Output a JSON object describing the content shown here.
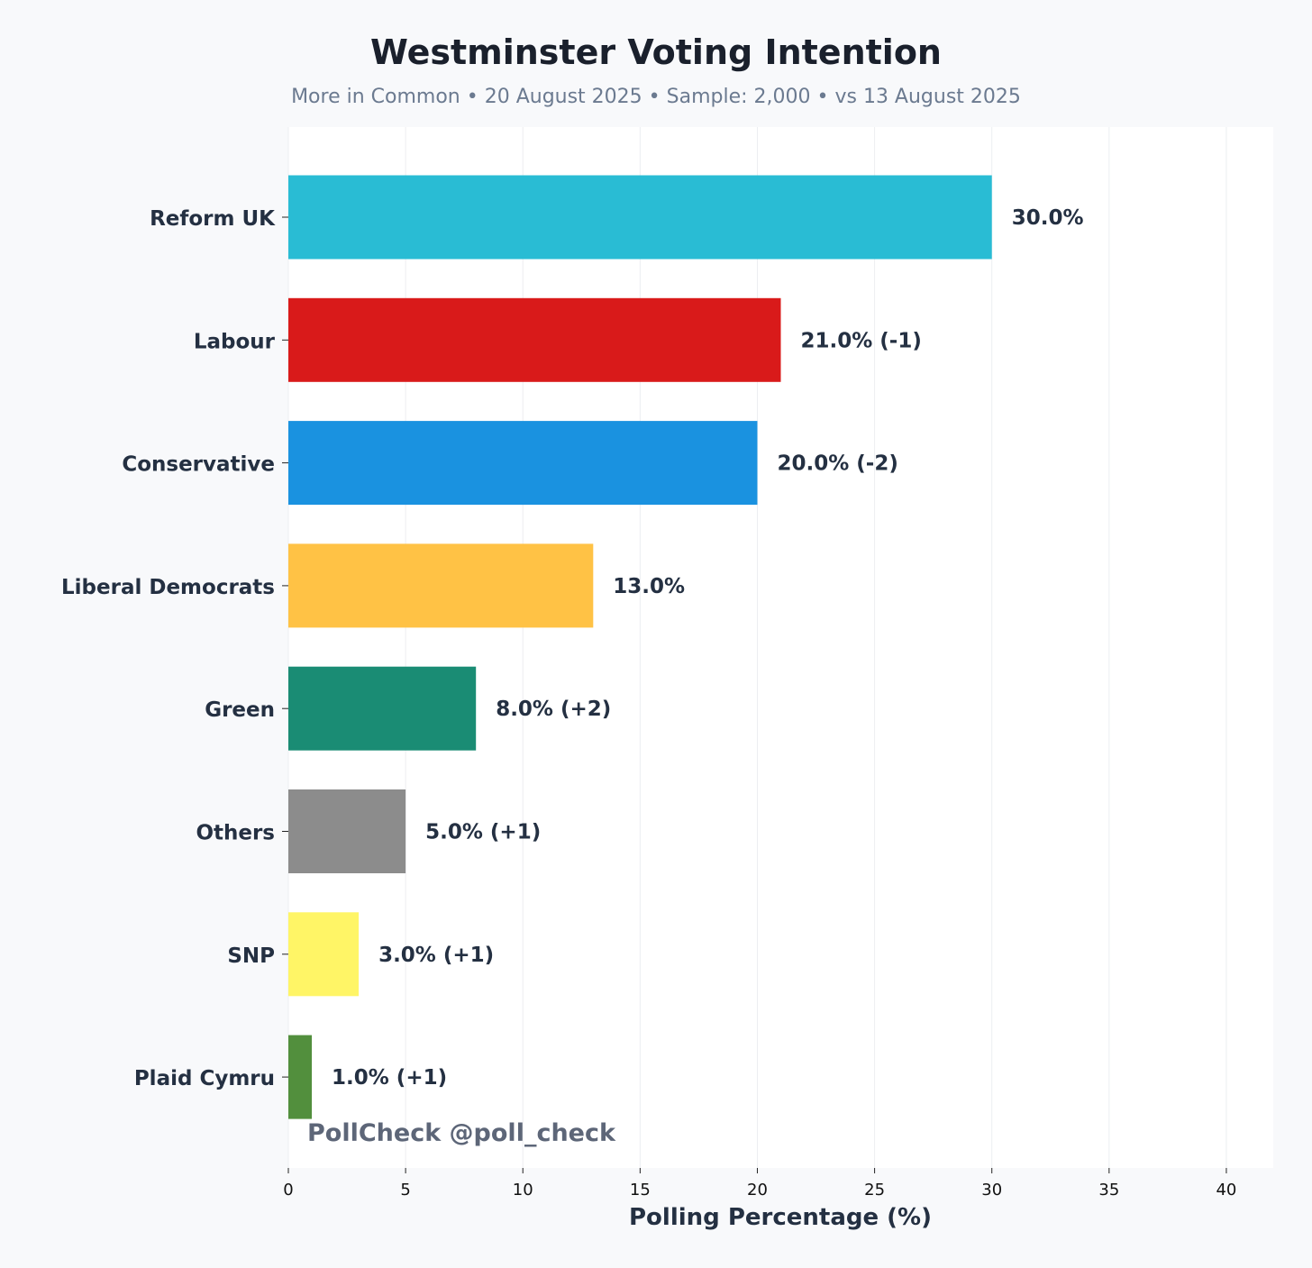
{
  "chart_data": {
    "type": "bar",
    "orientation": "horizontal",
    "title": "Westminster Voting Intention",
    "subtitle": "More in Common • 20 August 2025 • Sample: 2,000 • vs 13 August 2025",
    "xlabel": "Polling Percentage (%)",
    "ylabel": "",
    "xlim": [
      0,
      42
    ],
    "xticks": [
      0,
      5,
      10,
      15,
      20,
      25,
      30,
      35,
      40
    ],
    "grid": "vertical",
    "categories": [
      "Reform UK",
      "Labour",
      "Conservative",
      "Liberal Democrats",
      "Green",
      "Others",
      "SNP",
      "Plaid Cymru"
    ],
    "values": [
      30.0,
      21.0,
      20.0,
      13.0,
      8.0,
      5.0,
      3.0,
      1.0
    ],
    "data_labels": [
      "30.0%",
      "21.0% (-1)",
      "20.0% (-2)",
      "13.0%",
      "8.0% (+2)",
      "5.0% (+1)",
      "3.0% (+1)",
      "1.0% (+1)"
    ],
    "colors": [
      "#29bcd4",
      "#d91a1a",
      "#1a92e0",
      "#ffc245",
      "#1a8c74",
      "#8c8c8c",
      "#fff566",
      "#528f3d"
    ],
    "watermark": "PollCheck @poll_check"
  }
}
